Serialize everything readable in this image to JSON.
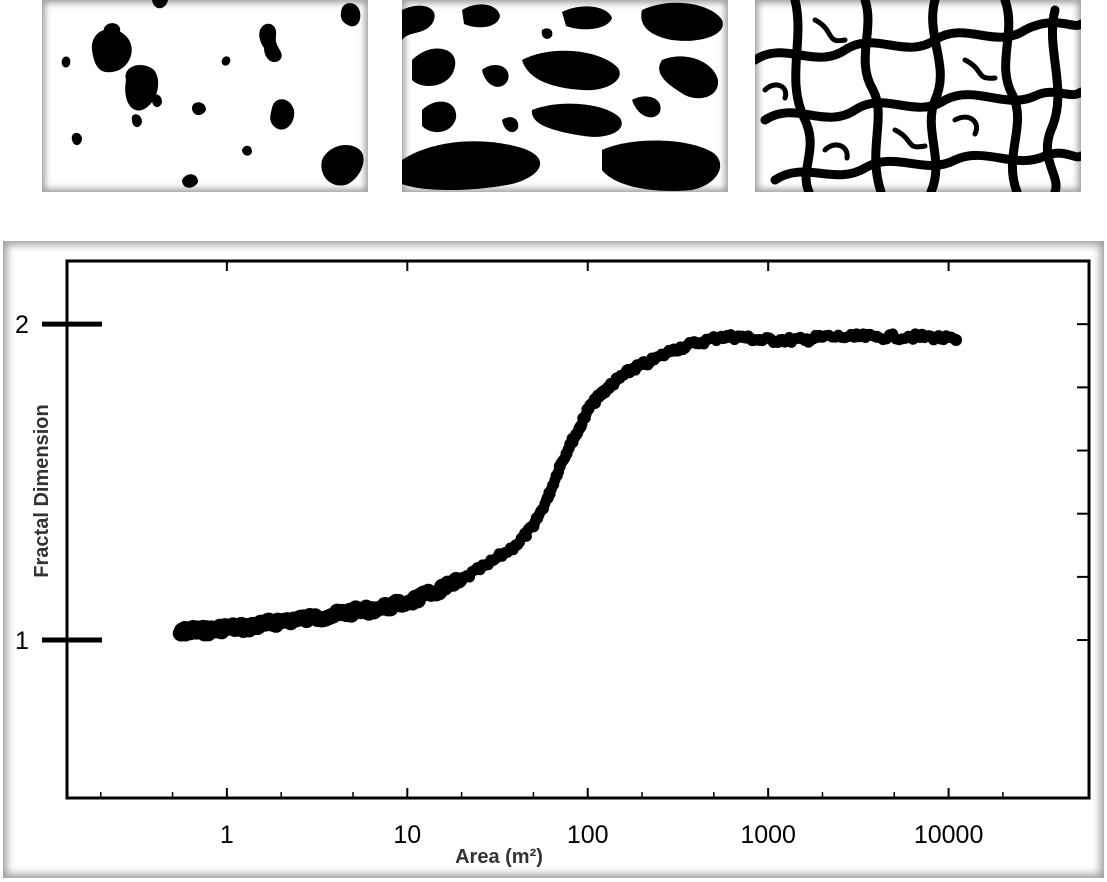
{
  "thumbnails": [
    {
      "name": "thumbnail-sparse-patches",
      "density": "sparse"
    },
    {
      "name": "thumbnail-intermediate-patches",
      "density": "medium"
    },
    {
      "name": "thumbnail-connected-network",
      "density": "dense"
    }
  ],
  "chart_data": {
    "type": "scatter",
    "title": "",
    "xlabel": "Area (m²)",
    "ylabel": "Fractal Dimension",
    "x_scale": "log",
    "xlim": [
      0.13,
      60000
    ],
    "ylim": [
      0.5,
      2.2
    ],
    "x_ticks": [
      1,
      10,
      100,
      1000,
      10000
    ],
    "x_tick_labels": [
      "1",
      "10",
      "100",
      "1000",
      "10000"
    ],
    "y_ticks": [
      1,
      2
    ],
    "y_tick_labels": [
      "1",
      "2"
    ],
    "grid": false,
    "color": "#000000",
    "series": [
      {
        "points": [
          [
            0.55,
            1.02
          ],
          [
            0.6,
            1.03
          ],
          [
            0.7,
            1.03
          ],
          [
            0.8,
            1.03
          ],
          [
            1.0,
            1.04
          ],
          [
            1.3,
            1.04
          ],
          [
            1.6,
            1.05
          ],
          [
            2.0,
            1.06
          ],
          [
            3.0,
            1.07
          ],
          [
            4.0,
            1.08
          ],
          [
            5.0,
            1.09
          ],
          [
            7.0,
            1.1
          ],
          [
            10.0,
            1.12
          ],
          [
            14.0,
            1.15
          ],
          [
            20.0,
            1.19
          ],
          [
            28.0,
            1.24
          ],
          [
            40.0,
            1.3
          ],
          [
            50.0,
            1.36
          ],
          [
            60.0,
            1.45
          ],
          [
            70.0,
            1.55
          ],
          [
            80.0,
            1.62
          ],
          [
            90.0,
            1.67
          ],
          [
            100.0,
            1.73
          ],
          [
            115.0,
            1.77
          ],
          [
            130.0,
            1.8
          ],
          [
            150.0,
            1.83
          ],
          [
            180.0,
            1.86
          ],
          [
            220.0,
            1.88
          ],
          [
            300.0,
            1.92
          ],
          [
            400.0,
            1.94
          ],
          [
            550.0,
            1.96
          ],
          [
            700.0,
            1.96
          ],
          [
            900.0,
            1.95
          ],
          [
            1200.0,
            1.95
          ],
          [
            1600.0,
            1.95
          ],
          [
            2000.0,
            1.96
          ],
          [
            3000.0,
            1.96
          ],
          [
            4000.0,
            1.96
          ],
          [
            6000.0,
            1.96
          ],
          [
            8000.0,
            1.96
          ],
          [
            11000.0,
            1.95
          ]
        ]
      }
    ]
  }
}
